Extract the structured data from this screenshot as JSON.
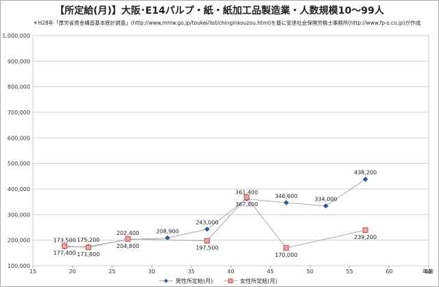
{
  "chart_data": {
    "type": "scatter",
    "title": "【所定給(月)】大阪･E14パルプ・紙・紙加工品製造業・人数規模10～99人",
    "subtitle": "＊H28年「厚労省賃金構造基本統計調査」(http://www.mhlw.go.jp/toukei/list/chinginkouzou.html)を基に安達社会保険労務士事務所(http://www.fp-s.co.jp)が作成",
    "xlabel": "年齢",
    "ylabel": "",
    "xlim": [
      15,
      65
    ],
    "ylim": [
      100000,
      1000000
    ],
    "x_ticks": [
      15,
      20,
      25,
      30,
      35,
      40,
      45,
      50,
      55,
      60,
      65
    ],
    "y_ticks": [
      100000,
      200000,
      300000,
      400000,
      500000,
      600000,
      700000,
      800000,
      900000,
      1000000
    ],
    "y_tick_labels": [
      "100,000",
      "200,000",
      "300,000",
      "400,000",
      "500,000",
      "600,000",
      "700,000",
      "800,000",
      "900,000",
      "1,000,000"
    ],
    "grid": "horizontal",
    "legend": "bottom",
    "series": [
      {
        "name": "男性所定給(月)",
        "color": "#2f5597",
        "marker": "diamond",
        "points": [
          {
            "x": 19,
            "y": 173500,
            "label": "173,500"
          },
          {
            "x": 22,
            "y": 175200,
            "label": "175,200"
          },
          {
            "x": 27,
            "y": 202400,
            "label": "202,400"
          },
          {
            "x": 32,
            "y": 208900,
            "label": "208,900"
          },
          {
            "x": 37,
            "y": 243000,
            "label": "243,000"
          },
          {
            "x": 42,
            "y": 361400,
            "label": "361,400"
          },
          {
            "x": 47,
            "y": 346600,
            "label": "346,600"
          },
          {
            "x": 52,
            "y": 334000,
            "label": "334,000"
          },
          {
            "x": 57,
            "y": 438200,
            "label": "438,200"
          }
        ]
      },
      {
        "name": "女性所定給(月)",
        "color": "#c0504d",
        "marker": "square",
        "points": [
          {
            "x": 19,
            "y": 177400,
            "label": "177,400"
          },
          {
            "x": 22,
            "y": 171800,
            "label": "171,800"
          },
          {
            "x": 27,
            "y": 204800,
            "label": "204,800"
          },
          {
            "x": 37,
            "y": 197500,
            "label": "197,500"
          },
          {
            "x": 42,
            "y": 367800,
            "label": "367,800"
          },
          {
            "x": 47,
            "y": 170000,
            "label": "170,000"
          },
          {
            "x": 57,
            "y": 239200,
            "label": "239,200"
          }
        ]
      }
    ]
  }
}
